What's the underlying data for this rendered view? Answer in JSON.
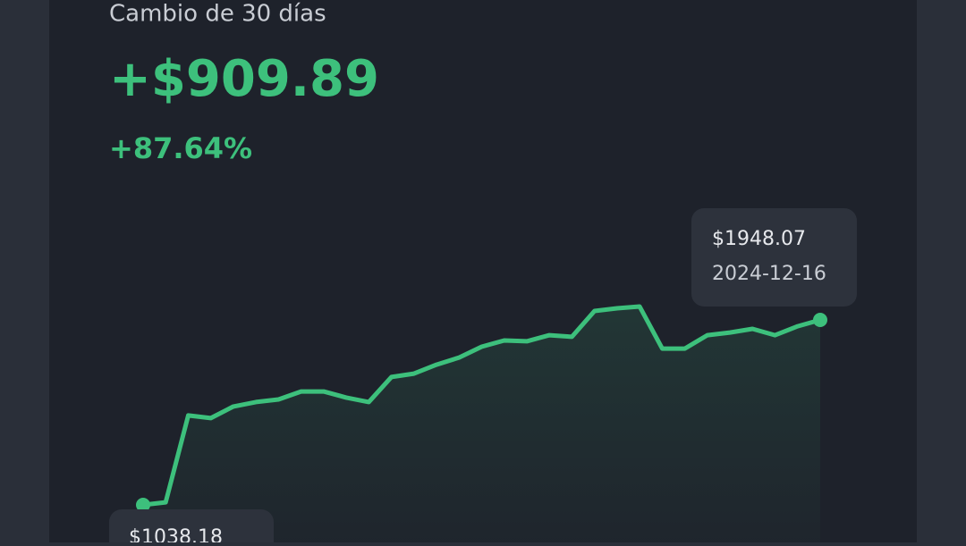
{
  "header": {
    "title": "Cambio de 30 días",
    "change": "+$909.89",
    "percent": "+87.64%"
  },
  "chart_data": {
    "type": "line",
    "color": "#3dc07c",
    "values": [
      1038.18,
      1051,
      1478,
      1465,
      1522,
      1544,
      1557,
      1596,
      1596,
      1566,
      1544,
      1667,
      1684,
      1728,
      1763,
      1816,
      1847,
      1843,
      1873,
      1865,
      1992,
      2005,
      2014,
      1807,
      1807,
      1873,
      1886,
      1904,
      1873,
      1917,
      1948.07
    ],
    "start_label": "$1038.18",
    "end_label": "$1948.07",
    "end_date": "2024-12-16"
  }
}
